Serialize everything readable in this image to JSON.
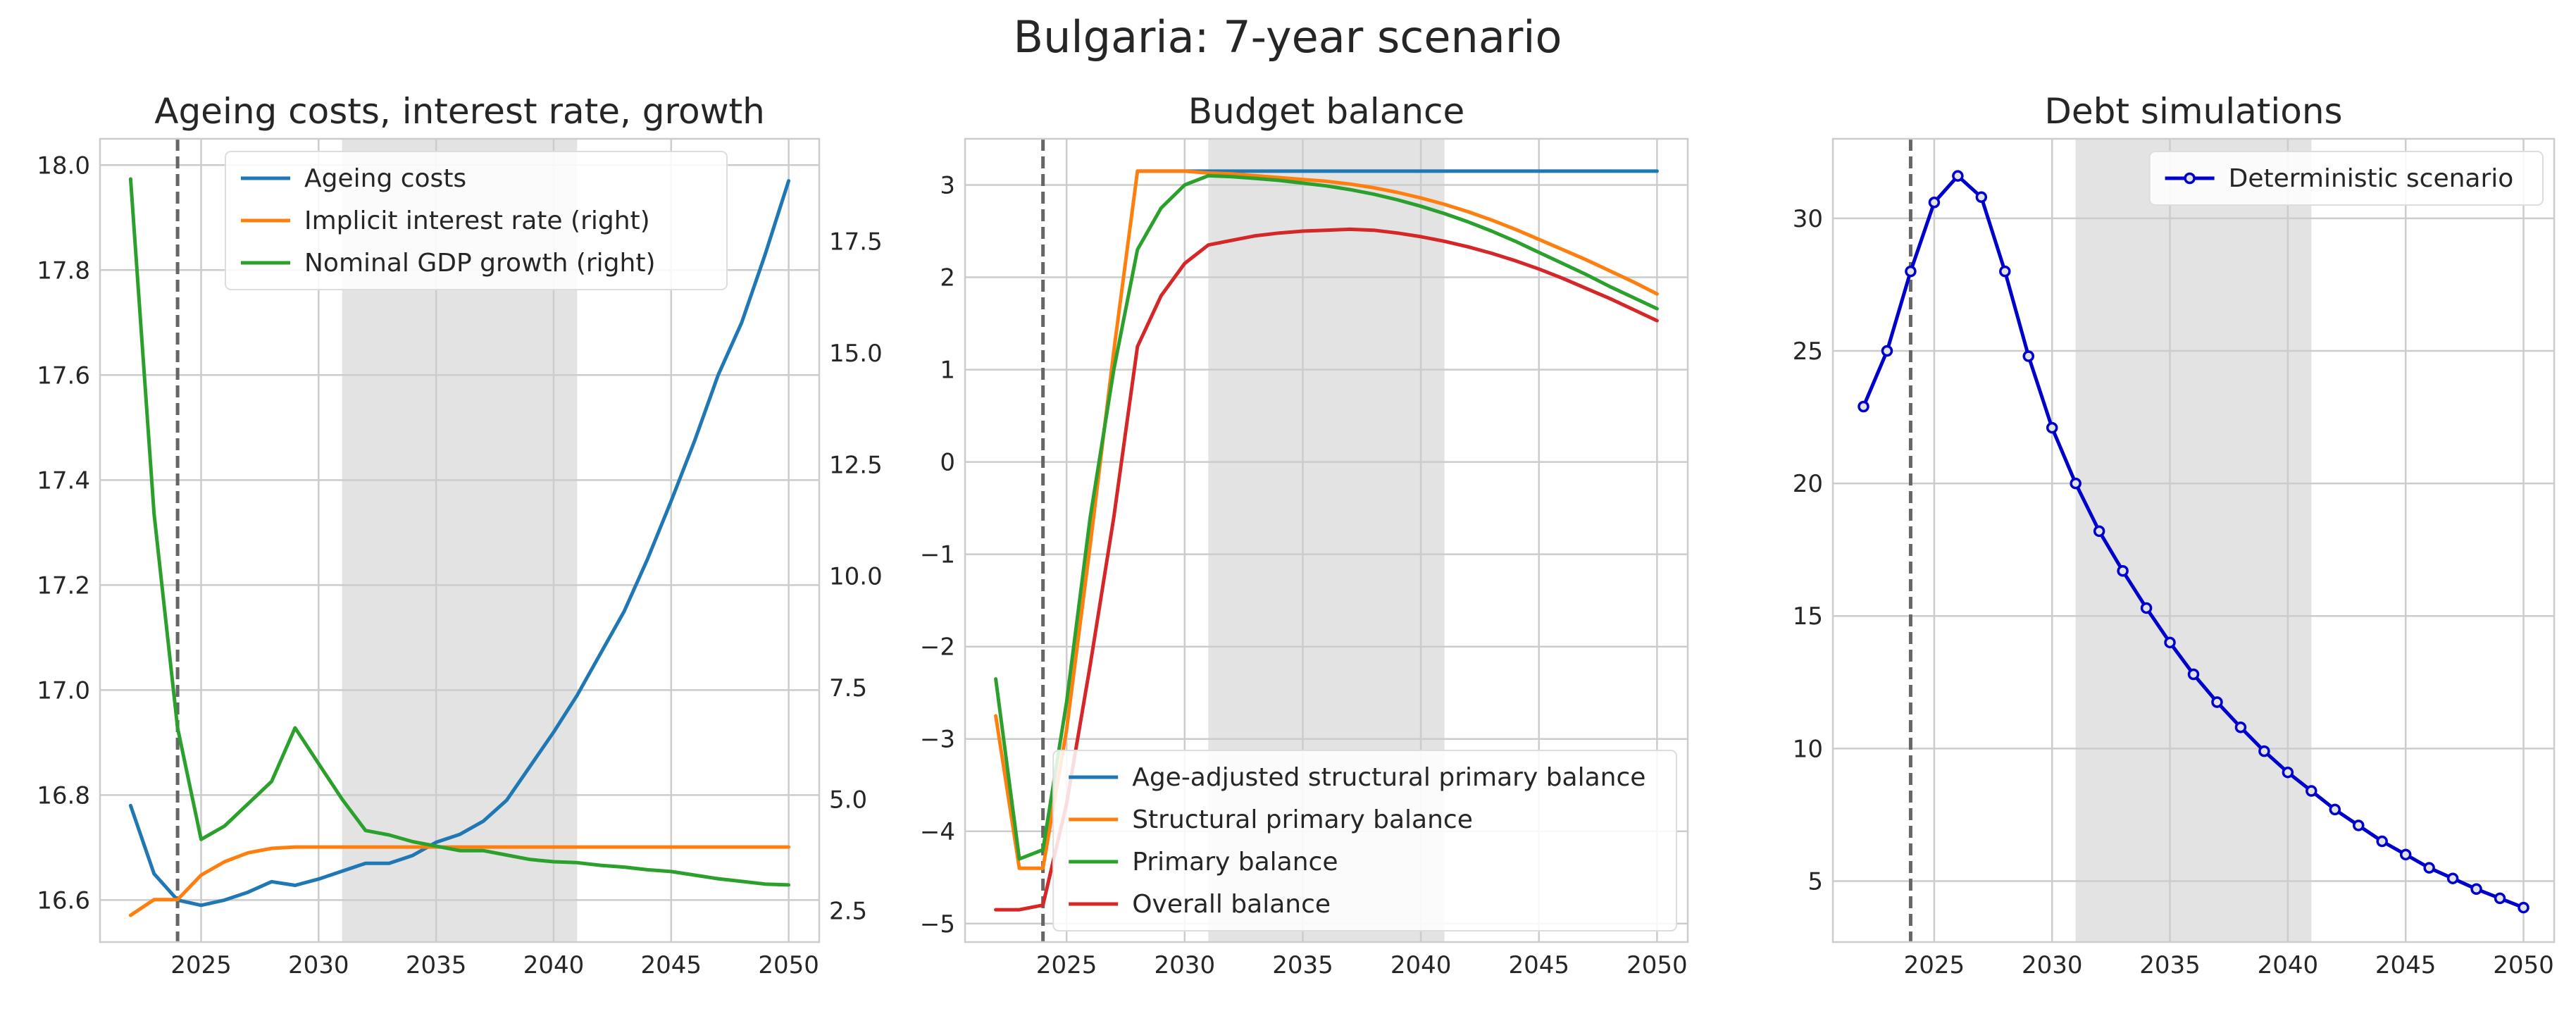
{
  "suptitle": "Bulgaria: 7-year scenario",
  "colors": {
    "blue": "#1f77b4",
    "orange": "#ff7f0e",
    "green": "#2ca02c",
    "red": "#d62728",
    "debt": "#0000cc",
    "shade": "#e3e3e3",
    "grid": "#cccccc",
    "vline": "#666666"
  },
  "chart_data": [
    {
      "type": "line",
      "title": "Ageing costs, interest rate, growth",
      "xlim": [
        2020.7,
        2051.3
      ],
      "xticks": [
        2025,
        2030,
        2035,
        2040,
        2045,
        2050
      ],
      "vline_x": 2024,
      "shade": [
        2031,
        2041
      ],
      "left_axis": {
        "ylim": [
          16.52,
          18.05
        ],
        "ticks": [
          "16.6",
          "16.8",
          "17.0",
          "17.2",
          "17.4",
          "17.6",
          "17.8",
          "18.0"
        ]
      },
      "right_axis": {
        "ylim": [
          1.8,
          19.8
        ],
        "ticks": [
          "2.5",
          "5.0",
          "7.5",
          "10.0",
          "12.5",
          "15.0",
          "17.5"
        ]
      },
      "legend_position": "upper-left",
      "series": [
        {
          "name": "Ageing costs",
          "color": "blue",
          "axis": "left",
          "x": [
            2022,
            2023,
            2024,
            2025,
            2026,
            2027,
            2028,
            2029,
            2030,
            2031,
            2032,
            2033,
            2034,
            2035,
            2036,
            2037,
            2038,
            2039,
            2040,
            2041,
            2042,
            2043,
            2044,
            2045,
            2046,
            2047,
            2048,
            2049,
            2050
          ],
          "y": [
            16.78,
            16.65,
            16.6,
            16.59,
            16.6,
            16.615,
            16.635,
            16.628,
            16.64,
            16.655,
            16.67,
            16.67,
            16.685,
            16.71,
            16.725,
            16.75,
            16.79,
            16.855,
            16.92,
            16.99,
            17.07,
            17.15,
            17.25,
            17.36,
            17.475,
            17.6,
            17.7,
            17.83,
            17.97
          ]
        },
        {
          "name": "Implicit interest rate (right)",
          "color": "orange",
          "axis": "right",
          "x": [
            2022,
            2023,
            2024,
            2025,
            2026,
            2027,
            2028,
            2029,
            2030,
            2031,
            2032,
            2033,
            2034,
            2035,
            2036,
            2037,
            2038,
            2039,
            2040,
            2041,
            2042,
            2043,
            2044,
            2045,
            2046,
            2047,
            2048,
            2049,
            2050
          ],
          "y": [
            2.4,
            2.75,
            2.75,
            3.3,
            3.6,
            3.8,
            3.9,
            3.93,
            3.93,
            3.93,
            3.93,
            3.93,
            3.93,
            3.93,
            3.93,
            3.93,
            3.93,
            3.93,
            3.93,
            3.93,
            3.93,
            3.93,
            3.93,
            3.93,
            3.93,
            3.93,
            3.93,
            3.93,
            3.93
          ]
        },
        {
          "name": "Nominal GDP growth (right)",
          "color": "green",
          "axis": "right",
          "x": [
            2022,
            2023,
            2024,
            2025,
            2026,
            2027,
            2028,
            2029,
            2030,
            2031,
            2032,
            2033,
            2034,
            2035,
            2036,
            2037,
            2038,
            2039,
            2040,
            2041,
            2042,
            2043,
            2044,
            2045,
            2046,
            2047,
            2048,
            2049,
            2050
          ],
          "y": [
            18.9,
            11.4,
            6.6,
            4.1,
            4.4,
            4.9,
            5.4,
            6.6,
            5.8,
            5.0,
            4.3,
            4.2,
            4.05,
            3.95,
            3.85,
            3.85,
            3.75,
            3.65,
            3.6,
            3.58,
            3.52,
            3.48,
            3.42,
            3.38,
            3.3,
            3.22,
            3.16,
            3.1,
            3.08
          ]
        }
      ]
    },
    {
      "type": "line",
      "title": "Budget balance",
      "xlim": [
        2020.7,
        2051.3
      ],
      "xticks": [
        2025,
        2030,
        2035,
        2040,
        2045,
        2050
      ],
      "vline_x": 2024,
      "shade": [
        2031,
        2041
      ],
      "ylim": [
        -5.2,
        3.5
      ],
      "yticks": [
        -5,
        -4,
        -3,
        -2,
        -1,
        0,
        1,
        2,
        3
      ],
      "legend_position": "lower-right",
      "series": [
        {
          "name": "Age-adjusted structural primary balance",
          "color": "blue",
          "x": [
            2028,
            2030,
            2032,
            2034,
            2036,
            2038,
            2040,
            2042,
            2044,
            2046,
            2048,
            2050
          ],
          "y": [
            3.15,
            3.15,
            3.15,
            3.15,
            3.15,
            3.15,
            3.15,
            3.15,
            3.15,
            3.15,
            3.15,
            3.15
          ]
        },
        {
          "name": "Structural primary balance",
          "color": "orange",
          "x": [
            2022,
            2023,
            2024,
            2025,
            2026,
            2027,
            2028,
            2029,
            2030,
            2031,
            2032,
            2033,
            2034,
            2035,
            2036,
            2037,
            2038,
            2039,
            2040,
            2041,
            2042,
            2043,
            2044,
            2045,
            2046,
            2047,
            2048,
            2049,
            2050
          ],
          "y": [
            -2.75,
            -4.4,
            -4.4,
            -2.9,
            -0.9,
            1.2,
            3.15,
            3.15,
            3.15,
            3.13,
            3.12,
            3.1,
            3.08,
            3.06,
            3.04,
            3.01,
            2.97,
            2.92,
            2.86,
            2.79,
            2.71,
            2.62,
            2.52,
            2.41,
            2.3,
            2.19,
            2.07,
            1.95,
            1.82
          ]
        },
        {
          "name": "Primary balance",
          "color": "green",
          "x": [
            2022,
            2023,
            2024,
            2025,
            2026,
            2027,
            2028,
            2029,
            2030,
            2031,
            2032,
            2033,
            2034,
            2035,
            2036,
            2037,
            2038,
            2039,
            2040,
            2041,
            2042,
            2043,
            2044,
            2045,
            2046,
            2047,
            2048,
            2049,
            2050
          ],
          "y": [
            -2.35,
            -4.3,
            -4.2,
            -2.6,
            -0.6,
            1.0,
            2.3,
            2.75,
            3.0,
            3.1,
            3.09,
            3.07,
            3.05,
            3.02,
            2.99,
            2.95,
            2.9,
            2.84,
            2.77,
            2.69,
            2.6,
            2.5,
            2.39,
            2.27,
            2.15,
            2.03,
            1.9,
            1.78,
            1.66
          ]
        },
        {
          "name": "Overall balance",
          "color": "red",
          "x": [
            2022,
            2023,
            2024,
            2025,
            2026,
            2027,
            2028,
            2029,
            2030,
            2031,
            2032,
            2033,
            2034,
            2035,
            2036,
            2037,
            2038,
            2039,
            2040,
            2041,
            2042,
            2043,
            2044,
            2045,
            2046,
            2047,
            2048,
            2049,
            2050
          ],
          "y": [
            -4.85,
            -4.85,
            -4.8,
            -3.7,
            -2.2,
            -0.6,
            1.25,
            1.8,
            2.15,
            2.35,
            2.4,
            2.45,
            2.48,
            2.5,
            2.51,
            2.52,
            2.51,
            2.48,
            2.44,
            2.39,
            2.33,
            2.26,
            2.18,
            2.09,
            1.99,
            1.88,
            1.77,
            1.65,
            1.53
          ]
        }
      ]
    },
    {
      "type": "line",
      "title": "Debt simulations",
      "xlim": [
        2020.7,
        2051.3
      ],
      "xticks": [
        2025,
        2030,
        2035,
        2040,
        2045,
        2050
      ],
      "vline_x": 2024,
      "shade": [
        2031,
        2041
      ],
      "ylim": [
        2.7,
        33
      ],
      "yticks": [
        5,
        10,
        15,
        20,
        25,
        30
      ],
      "legend_position": "upper-right",
      "series": [
        {
          "name": "Deterministic scenario",
          "color": "debt",
          "markers": true,
          "x": [
            2022,
            2023,
            2024,
            2025,
            2026,
            2027,
            2028,
            2029,
            2030,
            2031,
            2032,
            2033,
            2034,
            2035,
            2036,
            2037,
            2038,
            2039,
            2040,
            2041,
            2042,
            2043,
            2044,
            2045,
            2046,
            2047,
            2048,
            2049,
            2050
          ],
          "y": [
            22.9,
            25.0,
            28.0,
            30.6,
            31.6,
            30.8,
            28.0,
            24.8,
            22.1,
            20.0,
            18.2,
            16.7,
            15.3,
            14.0,
            12.8,
            11.75,
            10.8,
            9.9,
            9.1,
            8.4,
            7.7,
            7.1,
            6.5,
            6.0,
            5.5,
            5.1,
            4.7,
            4.35,
            4.0
          ]
        }
      ]
    }
  ]
}
